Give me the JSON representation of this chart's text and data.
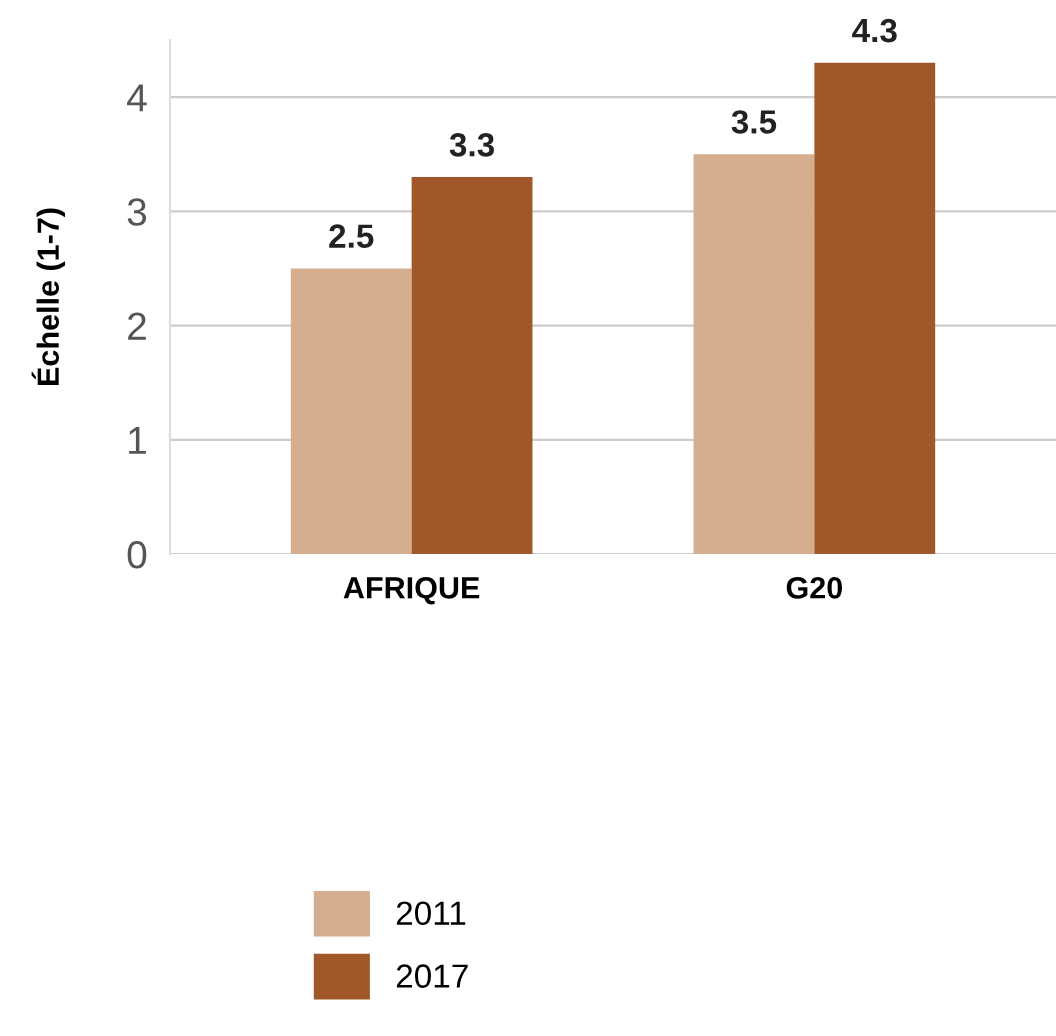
{
  "chart_data": {
    "type": "bar",
    "ylabel": "Échelle (1-7)",
    "categories": [
      "AFRIQUE",
      "G20"
    ],
    "series": [
      {
        "name": "2011",
        "color": "#d4ae8e",
        "values": [
          2.5,
          3.5
        ]
      },
      {
        "name": "2017",
        "color": "#a0582a",
        "values": [
          3.3,
          4.3
        ]
      }
    ],
    "ylim": [
      0,
      4.5
    ],
    "yticks": [
      0,
      1,
      2,
      3,
      4
    ],
    "grid": "y",
    "legend": "bottom",
    "data_labels": true
  }
}
